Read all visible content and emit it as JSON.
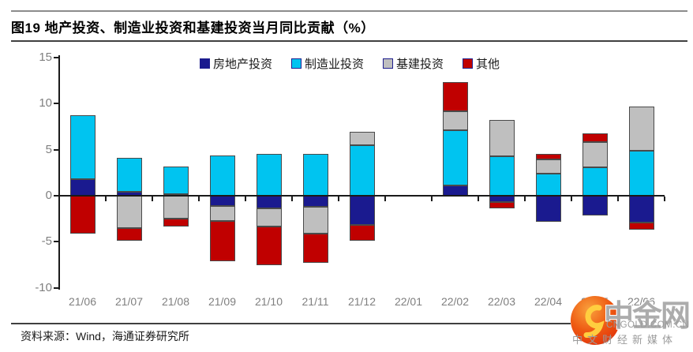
{
  "title": "图19 地产投资、制造业投资和基建投资当月同比贡献（%）",
  "source_note": "资料来源：Wind，海通证券研究所",
  "watermark": {
    "brand": "中金网",
    "domain": "CNGOLD.COM.CN",
    "tagline": "中文财经新媒体",
    "logo_icon": "golden-swirl-icon",
    "colors": {
      "circle": "#e8380d",
      "circle_light": "#f9a13c",
      "swirl": "#ffce3f",
      "text": "#a5a5a5"
    }
  },
  "chart_data": {
    "type": "bar",
    "stacked": true,
    "title": "图19 地产投资、制造业投资和基建投资当月同比贡献（%）",
    "xlabel": "",
    "ylabel": "",
    "ylim": [
      -10,
      15
    ],
    "yticks": [
      15,
      10,
      5,
      0,
      -5,
      -10
    ],
    "grid": false,
    "legend_position": "top",
    "categories": [
      "21/06",
      "21/07",
      "21/08",
      "21/09",
      "21/10",
      "21/11",
      "21/12",
      "22/01",
      "22/02",
      "22/03",
      "22/04",
      "22/05",
      "22/06"
    ],
    "series": [
      {
        "name": "房地产投资",
        "color": "#1a1a8f",
        "values": [
          1.8,
          0.4,
          0.2,
          -1.1,
          -1.4,
          -1.2,
          -3.2,
          0,
          1.1,
          -0.7,
          -2.8,
          -2.1,
          -2.9
        ]
      },
      {
        "name": "制造业投资",
        "color": "#00c4f0",
        "values": [
          6.9,
          3.7,
          3.0,
          4.4,
          4.5,
          4.5,
          5.5,
          0,
          6.0,
          4.3,
          2.4,
          3.1,
          4.9
        ]
      },
      {
        "name": "基建投资",
        "color": "#bfbfbf",
        "values": [
          0,
          -3.5,
          -2.5,
          -1.6,
          -1.9,
          -2.9,
          1.4,
          0,
          2.1,
          3.9,
          1.5,
          2.7,
          4.8
        ]
      },
      {
        "name": "其他",
        "color": "#c00000",
        "values": [
          -4.1,
          -1.4,
          -0.8,
          -4.4,
          -4.2,
          -3.2,
          -1.7,
          0,
          3.1,
          -0.7,
          0.6,
          1.0,
          -0.8
        ]
      }
    ]
  }
}
